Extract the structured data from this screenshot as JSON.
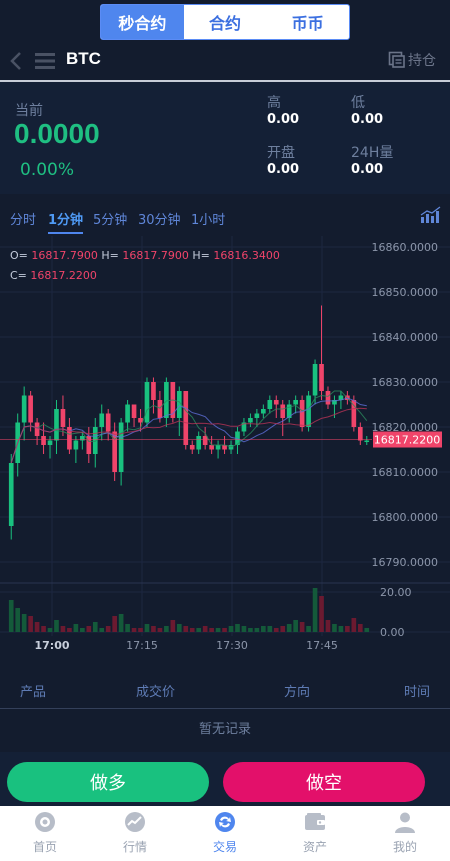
{
  "top_tabs": [
    "秒合约",
    "合约",
    "币币"
  ],
  "active_tab": 0,
  "header": {
    "symbol": "BTC",
    "positions_label": "持仓"
  },
  "stats": {
    "current_label": "当前",
    "price": "0.0000",
    "change_pct": "0.00%",
    "high_label": "高",
    "high": "0.00",
    "low_label": "低",
    "low": "0.00",
    "open_label": "开盘",
    "open": "0.00",
    "vol_label": "24H量",
    "vol": "0.00"
  },
  "intervals": [
    "分时",
    "1分钟",
    "5分钟",
    "30分钟",
    "1小时"
  ],
  "active_interval": 1,
  "ohlc": {
    "o_label": "O=",
    "o": "16817.7900",
    "h_label": "H=",
    "h": "16817.7900",
    "h2_label": "H=",
    "h2": "16816.3400",
    "c_label": "C=",
    "c": "16817.2200"
  },
  "chart_data": {
    "type": "candlestick",
    "y_ticks": [
      "16860.0000",
      "16850.0000",
      "16840.0000",
      "16830.0000",
      "16820.0000",
      "16810.0000",
      "16800.0000",
      "16790.0000"
    ],
    "ylim": [
      16790,
      16860
    ],
    "current_price_label": "16817.2200",
    "current_price": 16817.22,
    "volume_ticks": [
      "20.00",
      "0.00"
    ],
    "x_ticks": [
      "17:00",
      "17:15",
      "17:30",
      "17:45"
    ],
    "candles": [
      [
        16798,
        16814,
        16795,
        16812
      ],
      [
        16812,
        16823,
        16809,
        16821
      ],
      [
        16821,
        16829,
        16817,
        16827
      ],
      [
        16827,
        16828,
        16819,
        16821
      ],
      [
        16821,
        16822,
        16816,
        16818
      ],
      [
        16818,
        16821,
        16814,
        16816
      ],
      [
        16816,
        16818,
        16813,
        16817
      ],
      [
        16817,
        16826,
        16814,
        16824
      ],
      [
        16824,
        16827,
        16818,
        16820
      ],
      [
        16820,
        16822,
        16814,
        16815
      ],
      [
        16815,
        16818,
        16812,
        16817
      ],
      [
        16817,
        16819,
        16815,
        16818
      ],
      [
        16818,
        16820,
        16812,
        16814
      ],
      [
        16814,
        16822,
        16811,
        16820
      ],
      [
        16820,
        16825,
        16817,
        16823
      ],
      [
        16823,
        16824,
        16817,
        16819
      ],
      [
        16819,
        16821,
        16808,
        16810
      ],
      [
        16810,
        16822,
        16807,
        16821
      ],
      [
        16821,
        16826,
        16819,
        16825
      ],
      [
        16825,
        16825,
        16820,
        16822
      ],
      [
        16822,
        16824,
        16819,
        16821
      ],
      [
        16821,
        16831,
        16820,
        16830
      ],
      [
        16830,
        16831,
        16823,
        16826
      ],
      [
        16826,
        16828,
        16821,
        16822
      ],
      [
        16822,
        16831,
        16820,
        16830
      ],
      [
        16830,
        16830,
        16821,
        16822
      ],
      [
        16822,
        16829,
        16818,
        16828
      ],
      [
        16828,
        16828,
        16815,
        16816
      ],
      [
        16816,
        16817,
        16814,
        16815
      ],
      [
        16815,
        16819,
        16814,
        16818
      ],
      [
        16818,
        16820,
        16815,
        16816
      ],
      [
        16816,
        16818,
        16814,
        16815
      ],
      [
        16815,
        16817,
        16813,
        16816
      ],
      [
        16816,
        16818,
        16814,
        16815
      ],
      [
        16815,
        16817,
        16814,
        16816
      ],
      [
        16816,
        16820,
        16814,
        16819
      ],
      [
        16819,
        16822,
        16818,
        16821
      ],
      [
        16821,
        16823,
        16820,
        16822
      ],
      [
        16822,
        16824,
        16820,
        16823
      ],
      [
        16823,
        16825,
        16822,
        16824
      ],
      [
        16824,
        16827,
        16823,
        16826
      ],
      [
        16826,
        16827,
        16822,
        16825
      ],
      [
        16825,
        16826,
        16818,
        16822
      ],
      [
        16822,
        16826,
        16821,
        16825
      ],
      [
        16825,
        16827,
        16823,
        16826
      ],
      [
        16826,
        16827,
        16819,
        16820
      ],
      [
        16820,
        16828,
        16819,
        16827
      ],
      [
        16827,
        16835,
        16825,
        16834
      ],
      [
        16834,
        16847,
        16826,
        16828
      ],
      [
        16828,
        16829,
        16824,
        16825
      ],
      [
        16825,
        16827,
        16822,
        16826
      ],
      [
        16826,
        16828,
        16824,
        16827
      ],
      [
        16827,
        16828,
        16825,
        16826
      ],
      [
        16826,
        16827,
        16819,
        16820
      ],
      [
        16820,
        16821,
        16816,
        16817
      ],
      [
        16817,
        16818,
        16816,
        16817
      ]
    ],
    "volumes": [
      16,
      12,
      9,
      8,
      5,
      3,
      2,
      6,
      3,
      2,
      4,
      2,
      3,
      5,
      2,
      3,
      8,
      9,
      4,
      2,
      2,
      4,
      3,
      2,
      3,
      6,
      4,
      3,
      2,
      2,
      3,
      2,
      2,
      2,
      3,
      4,
      3,
      2,
      2,
      3,
      3,
      2,
      3,
      4,
      6,
      5,
      3,
      22,
      18,
      6,
      4,
      3,
      3,
      7,
      4,
      2
    ]
  },
  "orders": {
    "col_product": "产品",
    "col_price": "成交价",
    "col_direction": "方向",
    "col_time": "时间",
    "empty_text": "暂无记录"
  },
  "actions": {
    "long": "做多",
    "short": "做空"
  },
  "nav": [
    {
      "label": "首页",
      "icon": "home-icon"
    },
    {
      "label": "行情",
      "icon": "market-icon"
    },
    {
      "label": "交易",
      "icon": "trade-icon"
    },
    {
      "label": "资产",
      "icon": "wallet-icon"
    },
    {
      "label": "我的",
      "icon": "profile-icon"
    }
  ],
  "active_nav": 2,
  "colors": {
    "up": "#19c17f",
    "down": "#f0446a",
    "accent": "#4f86ee",
    "bg": "#131c2e"
  }
}
